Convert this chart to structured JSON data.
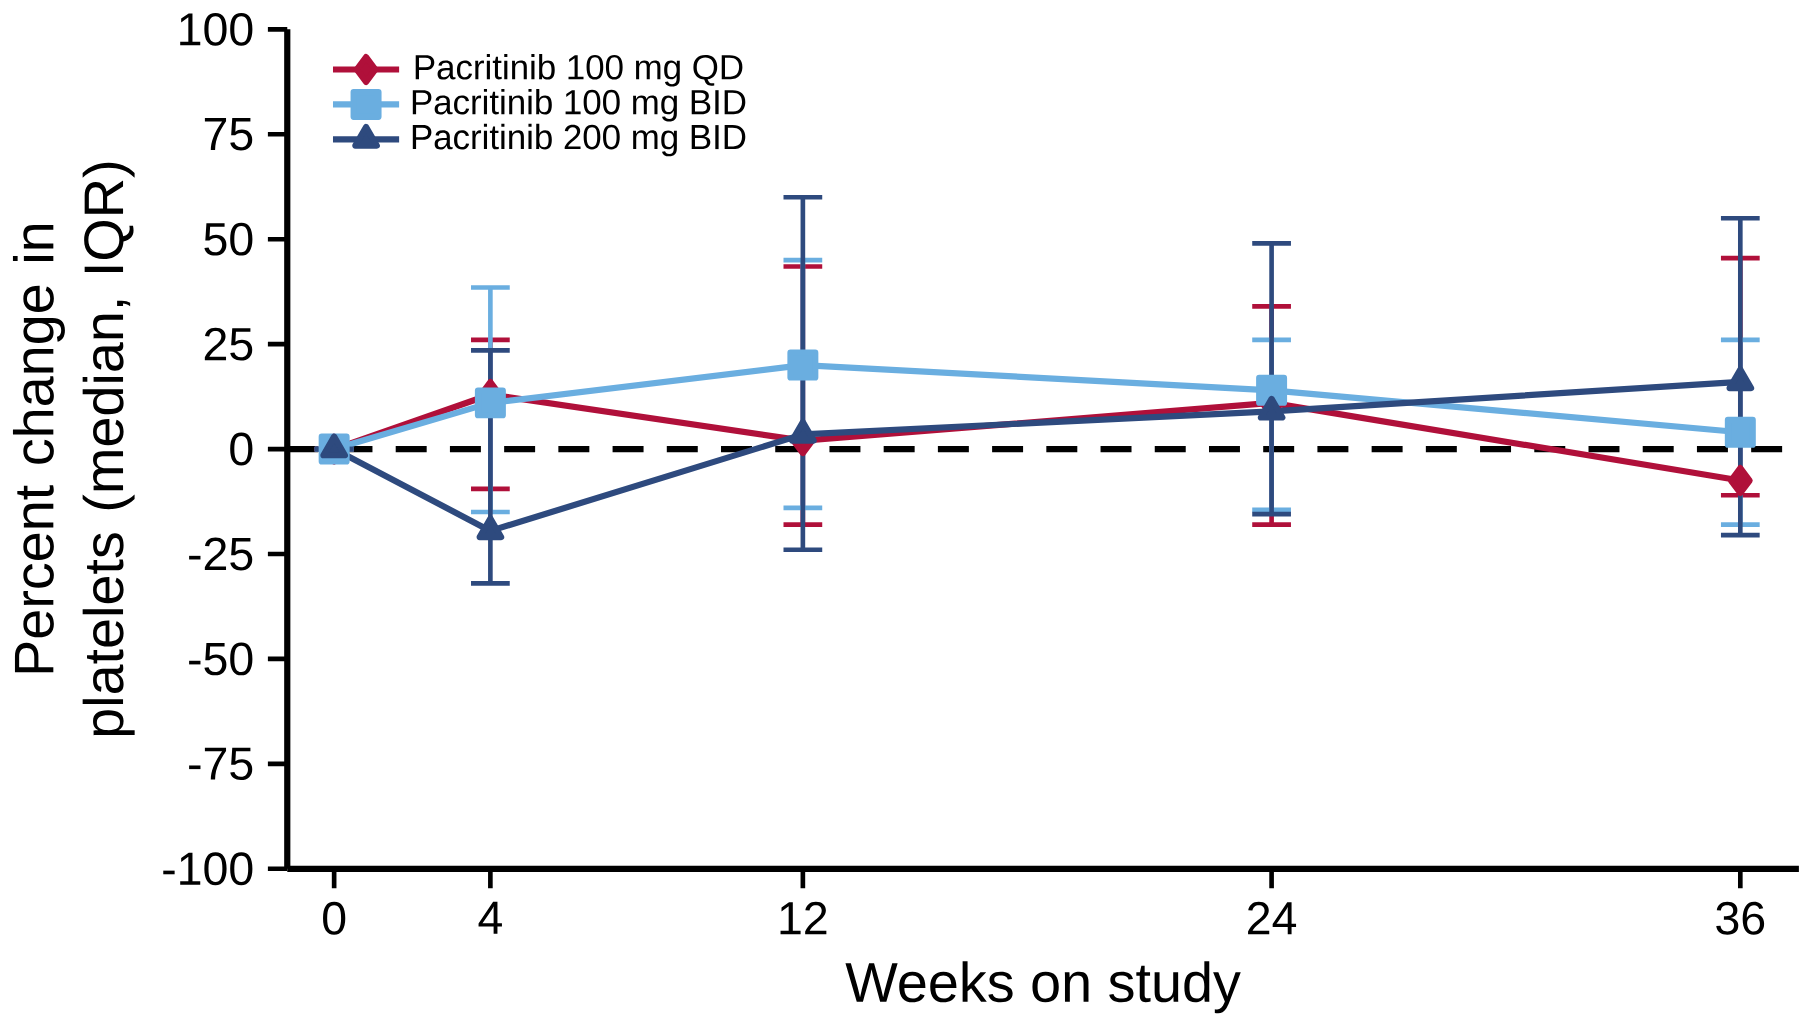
{
  "chart_data": {
    "type": "line",
    "xlabel": "Weeks on study",
    "ylabel": "Percent change in platelets (median, IQR)",
    "x": [
      0,
      4,
      12,
      24,
      36
    ],
    "xlim": [
      -1.2,
      37.5
    ],
    "xticks": [
      0,
      4,
      12,
      24,
      36
    ],
    "ylim": [
      -100,
      100
    ],
    "yticks": [
      -100,
      -75,
      -50,
      -25,
      0,
      25,
      50,
      75,
      100
    ],
    "legend": "top left",
    "grid": false,
    "ref_lines": [
      {
        "axis": "y",
        "value": 0,
        "color": "#000000",
        "line_style": "dashed"
      }
    ],
    "series": [
      {
        "name": "Pacritinib 100 mg QD",
        "color": "#b0103a",
        "marker": "diamond",
        "values": [
          0,
          13,
          2,
          11,
          -7.5
        ],
        "errors": [
          null,
          [
            -9.5,
            26
          ],
          [
            -18,
            43.5
          ],
          [
            -18,
            34
          ],
          [
            -11,
            45.5
          ]
        ]
      },
      {
        "name": "Pacritinib 100 mg BID",
        "color": "#6aaee0",
        "marker": "square",
        "values": [
          0,
          11,
          20,
          14,
          4
        ],
        "errors": [
          null,
          [
            -15,
            38.5
          ],
          [
            -14,
            45
          ],
          [
            -14.5,
            26
          ],
          [
            -18,
            26
          ]
        ]
      },
      {
        "name": "Pacritinib 200 mg BID",
        "color": "#2e4a7e",
        "marker": "triangle",
        "values": [
          0,
          -19.5,
          3.5,
          9,
          16
        ],
        "errors": [
          null,
          [
            -32,
            23.5
          ],
          [
            -24,
            60
          ],
          [
            -15.5,
            49
          ],
          [
            -20.5,
            55
          ]
        ]
      }
    ]
  }
}
